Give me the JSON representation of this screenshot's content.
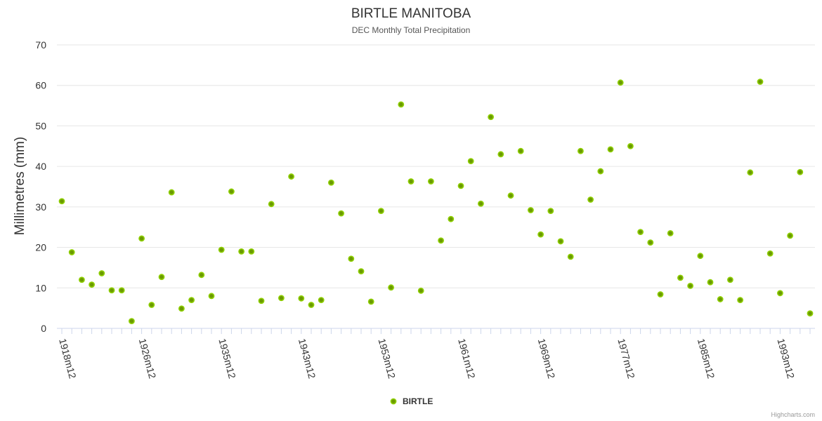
{
  "chart_data": {
    "type": "scatter",
    "title": "BIRTLE MANITOBA",
    "subtitle": "DEC Monthly Total Precipitation",
    "ylabel": "Millimetres (mm)",
    "xlabel": "",
    "ylim": [
      0,
      70
    ],
    "yticks": [
      0,
      10,
      20,
      30,
      40,
      50,
      60,
      70
    ],
    "x_labeled_ticks": [
      "1918m12",
      "1926m12",
      "1935m12",
      "1943m12",
      "1953m12",
      "1961m12",
      "1969m12",
      "1977m12",
      "1985m12",
      "1993m12"
    ],
    "x_labeled_tick_index": [
      0,
      8,
      16,
      24,
      32,
      40,
      48,
      56,
      64,
      72
    ],
    "x_category_count": 76,
    "grid": true,
    "legend_position": "bottom-center",
    "series": [
      {
        "name": "BIRTLE",
        "color": "#6b9a00",
        "values": [
          31.4,
          18.8,
          12.0,
          10.8,
          13.6,
          9.4,
          9.4,
          1.8,
          22.2,
          5.8,
          12.7,
          33.6,
          4.9,
          7.0,
          13.2,
          8.0,
          19.4,
          33.8,
          19.0,
          19.0,
          6.8,
          30.7,
          7.5,
          37.5,
          7.4,
          5.8,
          7.0,
          36.0,
          28.4,
          17.2,
          14.1,
          6.6,
          29.0,
          10.1,
          55.3,
          36.3,
          9.3,
          36.3,
          21.7,
          27.0,
          35.2,
          41.3,
          30.8,
          52.2,
          43.0,
          32.8,
          43.8,
          29.2,
          23.2,
          29.0,
          21.5,
          17.7,
          43.8,
          31.8,
          38.8,
          44.2,
          60.7,
          45.0,
          23.8,
          21.2,
          8.4,
          23.5,
          12.5,
          10.5,
          17.9,
          11.4,
          7.2,
          12.0,
          7.0,
          38.5,
          60.9,
          18.5,
          8.7,
          22.9,
          38.6,
          3.7
        ]
      }
    ]
  },
  "legend": {
    "label": "BIRTLE"
  },
  "credits": "Highcharts.com"
}
